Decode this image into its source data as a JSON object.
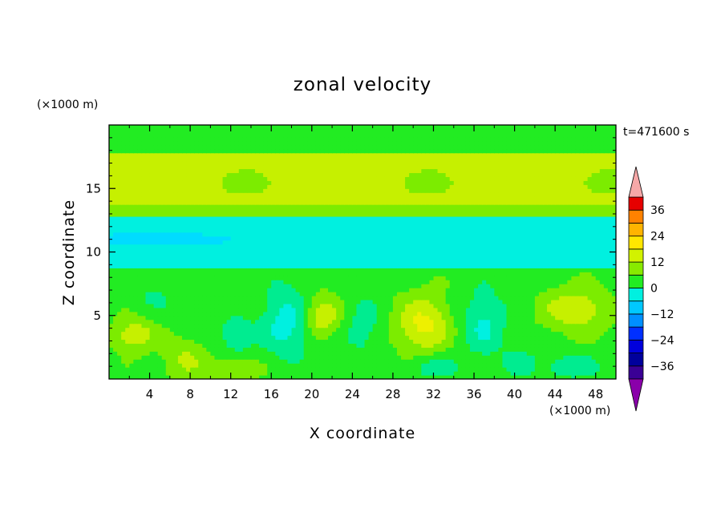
{
  "chart_data": {
    "type": "heatmap",
    "title": "zonal velocity",
    "xlabel": "X coordinate",
    "ylabel": "Z coordinate",
    "x_unit": "(×1000 m)",
    "y_unit": "(×1000 m)",
    "time_label": "t=471600 s",
    "xlim": [
      0,
      50
    ],
    "ylim": [
      0,
      20
    ],
    "x_ticks": [
      4,
      8,
      12,
      16,
      20,
      24,
      28,
      32,
      36,
      40,
      44,
      48
    ],
    "y_ticks": [
      5,
      10,
      15
    ],
    "colorbar": {
      "levels": [
        -42,
        -36,
        -30,
        -24,
        -18,
        -12,
        -6,
        0,
        6,
        12,
        18,
        24,
        30,
        36,
        42
      ],
      "tick_labels": [
        "36",
        "24",
        "12",
        "0",
        "-12",
        "-24",
        "-36"
      ],
      "tick_values": [
        36,
        24,
        12,
        0,
        -12,
        -24,
        -36
      ],
      "colors": [
        "#7a00a8",
        "#3a0095",
        "#00009c",
        "#0000dc",
        "#0030ff",
        "#0090ff",
        "#00c8ff",
        "#00f0e0",
        "#00e880",
        "#18ea18",
        "#88ea00",
        "#d2f200",
        "#ffe600",
        "#ffb400",
        "#ff8200",
        "#ff4800",
        "#e60000"
      ],
      "over_color": "#f6a8a8",
      "under_color": "#8a00aa"
    },
    "value_range": [
      -10,
      12
    ]
  }
}
